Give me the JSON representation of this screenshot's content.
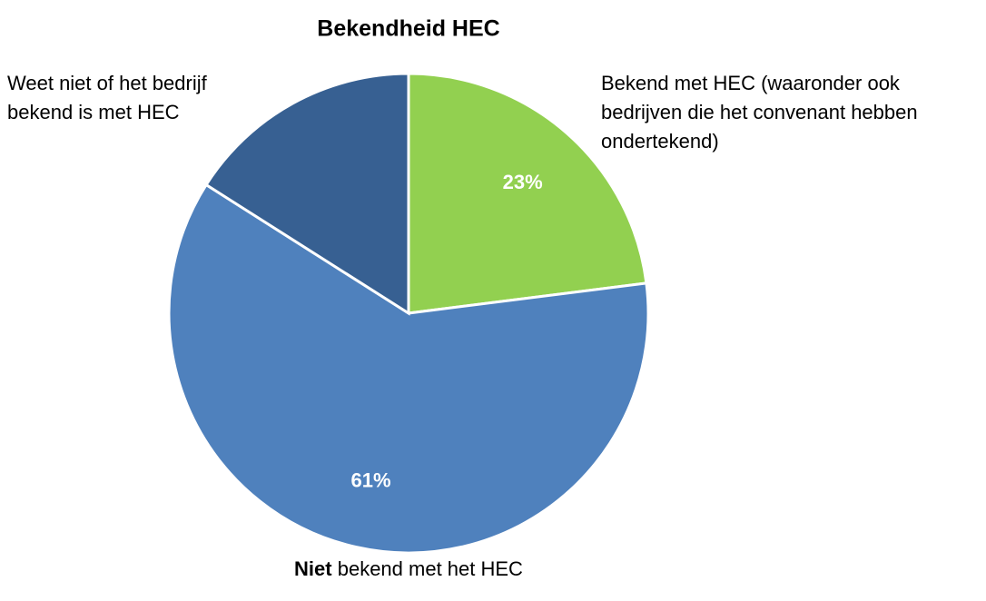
{
  "chart_data": {
    "type": "pie",
    "title": "Bekendheid HEC",
    "categories": [
      "Bekend met HEC (waaronder ook bedrijven die het convenant hebben ondertekend)",
      "Niet bekend met het HEC",
      "Weet niet of het bedrijf bekend is met HEC"
    ],
    "values": [
      23,
      61,
      16
    ],
    "value_labels": [
      "23%",
      "61%",
      null
    ],
    "colors": [
      "#92d050",
      "#4f81bd",
      "#376092"
    ]
  }
}
